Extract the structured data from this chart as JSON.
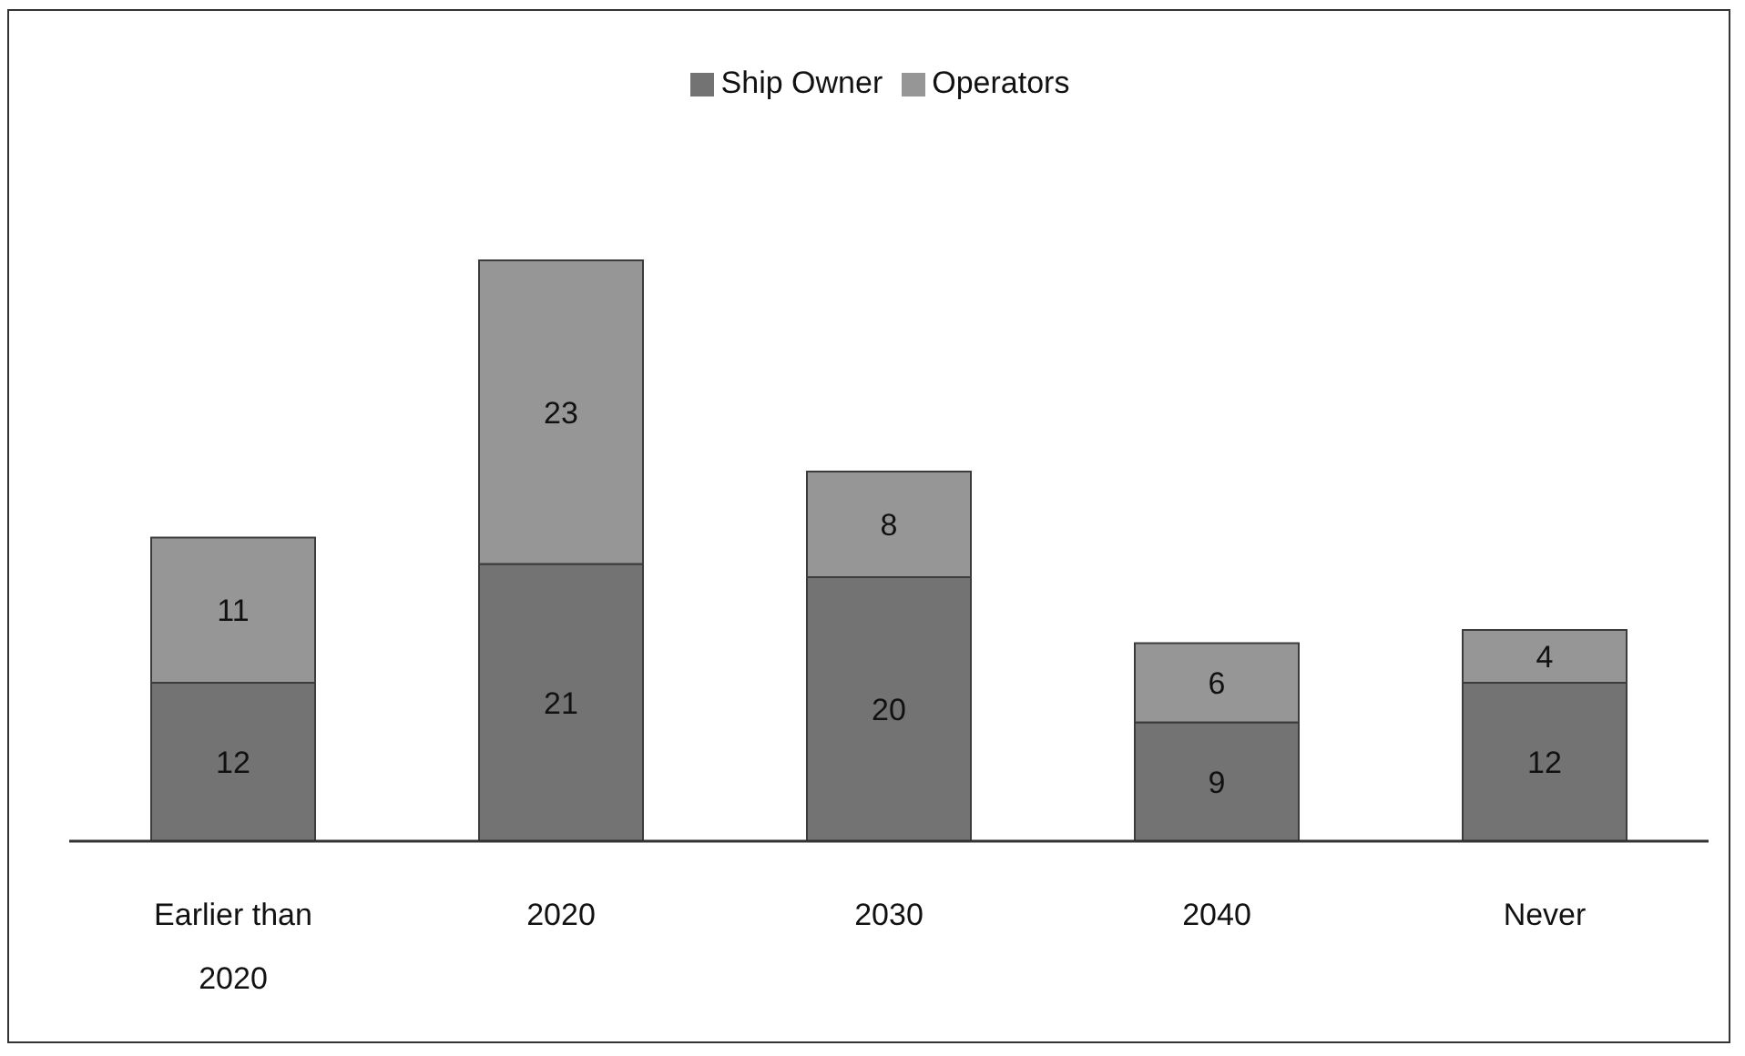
{
  "chart_data": {
    "type": "bar",
    "categories": [
      "Earlier than 2020",
      "2020",
      "2030",
      "2040",
      "Never"
    ],
    "series": [
      {
        "name": "Ship Owner",
        "color": "#737373",
        "values": [
          12,
          21,
          20,
          9,
          12
        ]
      },
      {
        "name": "Operators",
        "color": "#969696",
        "values": [
          11,
          23,
          8,
          6,
          4
        ]
      }
    ],
    "stacked": true,
    "data_labels": true,
    "legend": "top"
  }
}
